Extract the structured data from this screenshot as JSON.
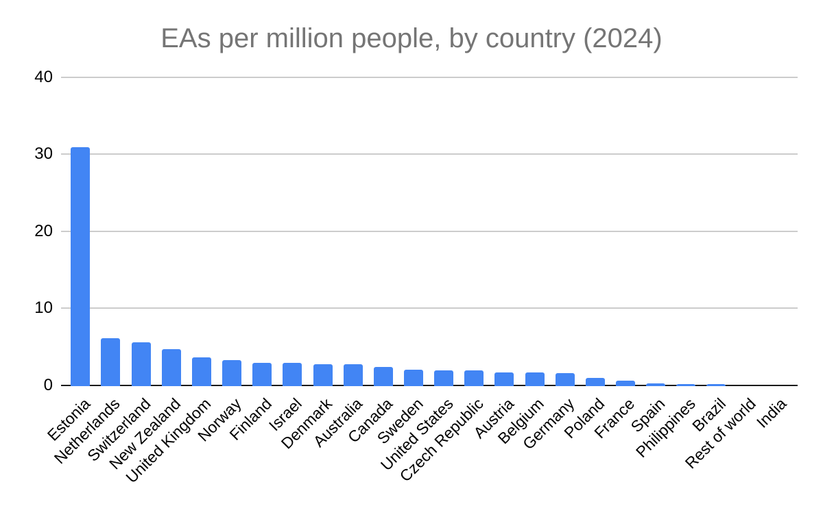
{
  "page": {
    "background": "#ffffff"
  },
  "chart_data": {
    "type": "bar",
    "title": "EAs per million people, by country (2024)",
    "xlabel": "",
    "ylabel": "",
    "categories": [
      "Estonia",
      "Netherlands",
      "Switzerland",
      "New Zealand",
      "United Kingdom",
      "Norway",
      "Finland",
      "Israel",
      "Denmark",
      "Australia",
      "Canada",
      "Sweden",
      "United States",
      "Czech Republic",
      "Austria",
      "Belgium",
      "Germany",
      "Poland",
      "France",
      "Spain",
      "Philippines",
      "Brazil",
      "Rest of world",
      "India"
    ],
    "values": [
      30.9,
      6.1,
      5.6,
      4.7,
      3.65,
      3.25,
      2.9,
      2.9,
      2.72,
      2.72,
      2.35,
      2.0,
      1.9,
      1.9,
      1.65,
      1.65,
      1.55,
      0.9,
      0.62,
      0.22,
      0.12,
      0.11,
      0.02,
      0.01
    ],
    "ylim": [
      0,
      40
    ],
    "yticks": [
      0,
      10,
      20,
      30,
      40
    ],
    "grid": true,
    "legend": "none",
    "bar_color": "#4285f4",
    "title_color": "#757575",
    "gridline_color": "#cccccc",
    "axis_color": "#1a1a1a",
    "tick_label_color": "#000000"
  }
}
